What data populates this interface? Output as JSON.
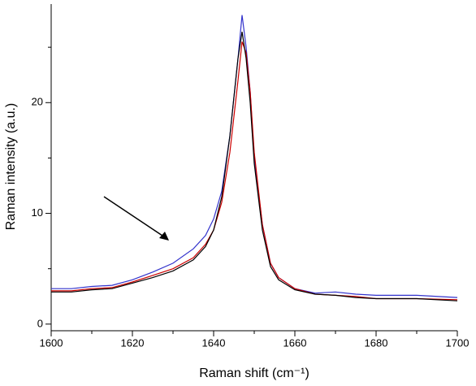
{
  "chart_data": {
    "type": "line",
    "xlabel": "Raman shift (cm⁻¹)",
    "ylabel": "Raman intensity (a.u.)",
    "x": [
      1600,
      1605,
      1610,
      1615,
      1620,
      1625,
      1630,
      1635,
      1638,
      1640,
      1642,
      1644,
      1646,
      1647,
      1648,
      1649,
      1650,
      1652,
      1654,
      1656,
      1660,
      1665,
      1670,
      1675,
      1680,
      1690,
      1700
    ],
    "series": [
      {
        "color": "#3333cc",
        "values": [
          3.2,
          3.2,
          3.4,
          3.5,
          4.0,
          4.7,
          5.5,
          6.8,
          8.0,
          9.5,
          12,
          17,
          24,
          27.9,
          25,
          21,
          15,
          9,
          5.5,
          4.2,
          3.2,
          2.8,
          2.9,
          2.7,
          2.6,
          2.6,
          2.4
        ]
      },
      {
        "color": "#cc0000",
        "values": [
          3.0,
          3.0,
          3.2,
          3.3,
          3.8,
          4.4,
          5.0,
          6.0,
          7.2,
          8.5,
          11,
          15.5,
          22,
          25.5,
          24.5,
          21,
          15.5,
          9,
          5.5,
          4.2,
          3.2,
          2.7,
          2.6,
          2.5,
          2.3,
          2.3,
          2.2
        ]
      },
      {
        "color": "#000000",
        "values": [
          2.9,
          2.9,
          3.1,
          3.2,
          3.7,
          4.2,
          4.8,
          5.8,
          7.0,
          8.5,
          11.5,
          17,
          24,
          26.4,
          24,
          20,
          14.5,
          8.5,
          5.2,
          4.0,
          3.1,
          2.7,
          2.6,
          2.4,
          2.3,
          2.3,
          2.1
        ]
      }
    ],
    "xlim": [
      1600,
      1700
    ],
    "xticks": [
      1600,
      1620,
      1640,
      1660,
      1680,
      1700
    ],
    "xminor": [
      1610,
      1630,
      1650,
      1670,
      1690
    ],
    "ylim": [
      -0.6,
      28.9
    ],
    "yticks": [
      0,
      10,
      20
    ],
    "yminor": [
      5,
      15,
      25
    ],
    "grid": false
  }
}
